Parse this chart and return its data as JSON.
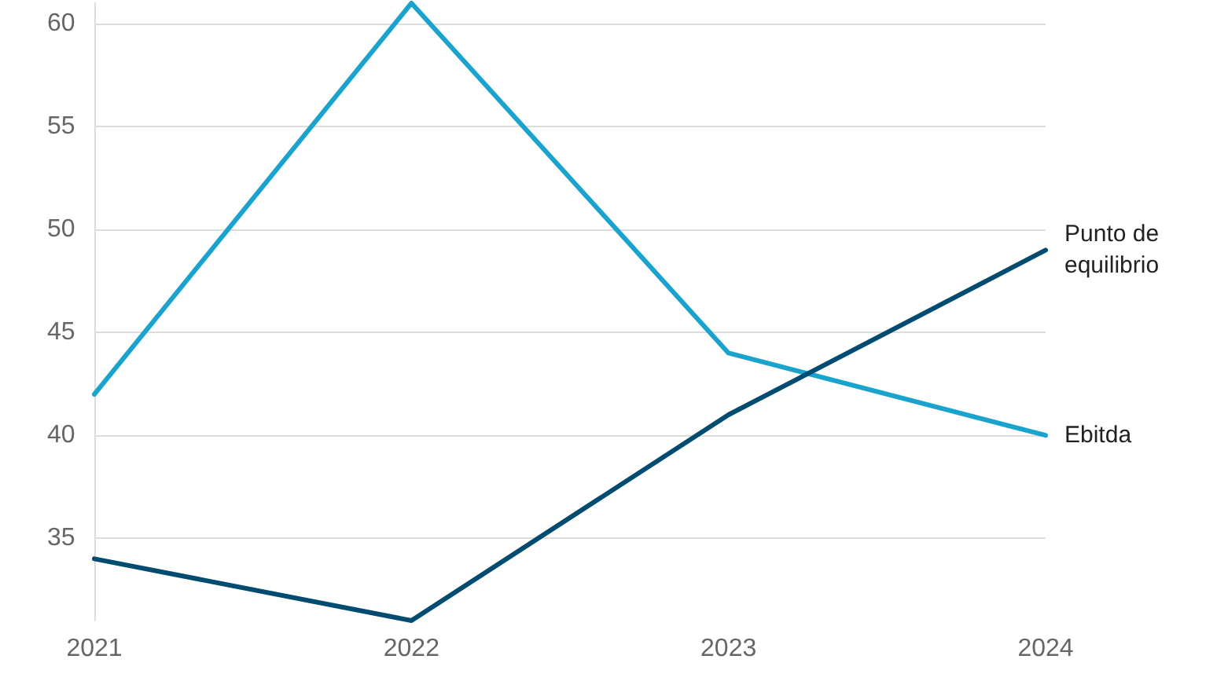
{
  "chart_data": {
    "type": "line",
    "categories": [
      "2021",
      "2022",
      "2023",
      "2024"
    ],
    "series": [
      {
        "name": "Ebitda",
        "color": "#1aa3cd",
        "values": [
          42,
          61,
          44,
          40
        ]
      },
      {
        "name": "Punto de equilibrio",
        "color": "#004b70",
        "values": [
          34,
          31,
          41,
          49
        ]
      }
    ],
    "ylim": [
      31,
      61
    ],
    "yticks": [
      35,
      40,
      45,
      50,
      55,
      60
    ],
    "grid": "y",
    "legend": false,
    "marker": "none",
    "line_style": "solid"
  }
}
